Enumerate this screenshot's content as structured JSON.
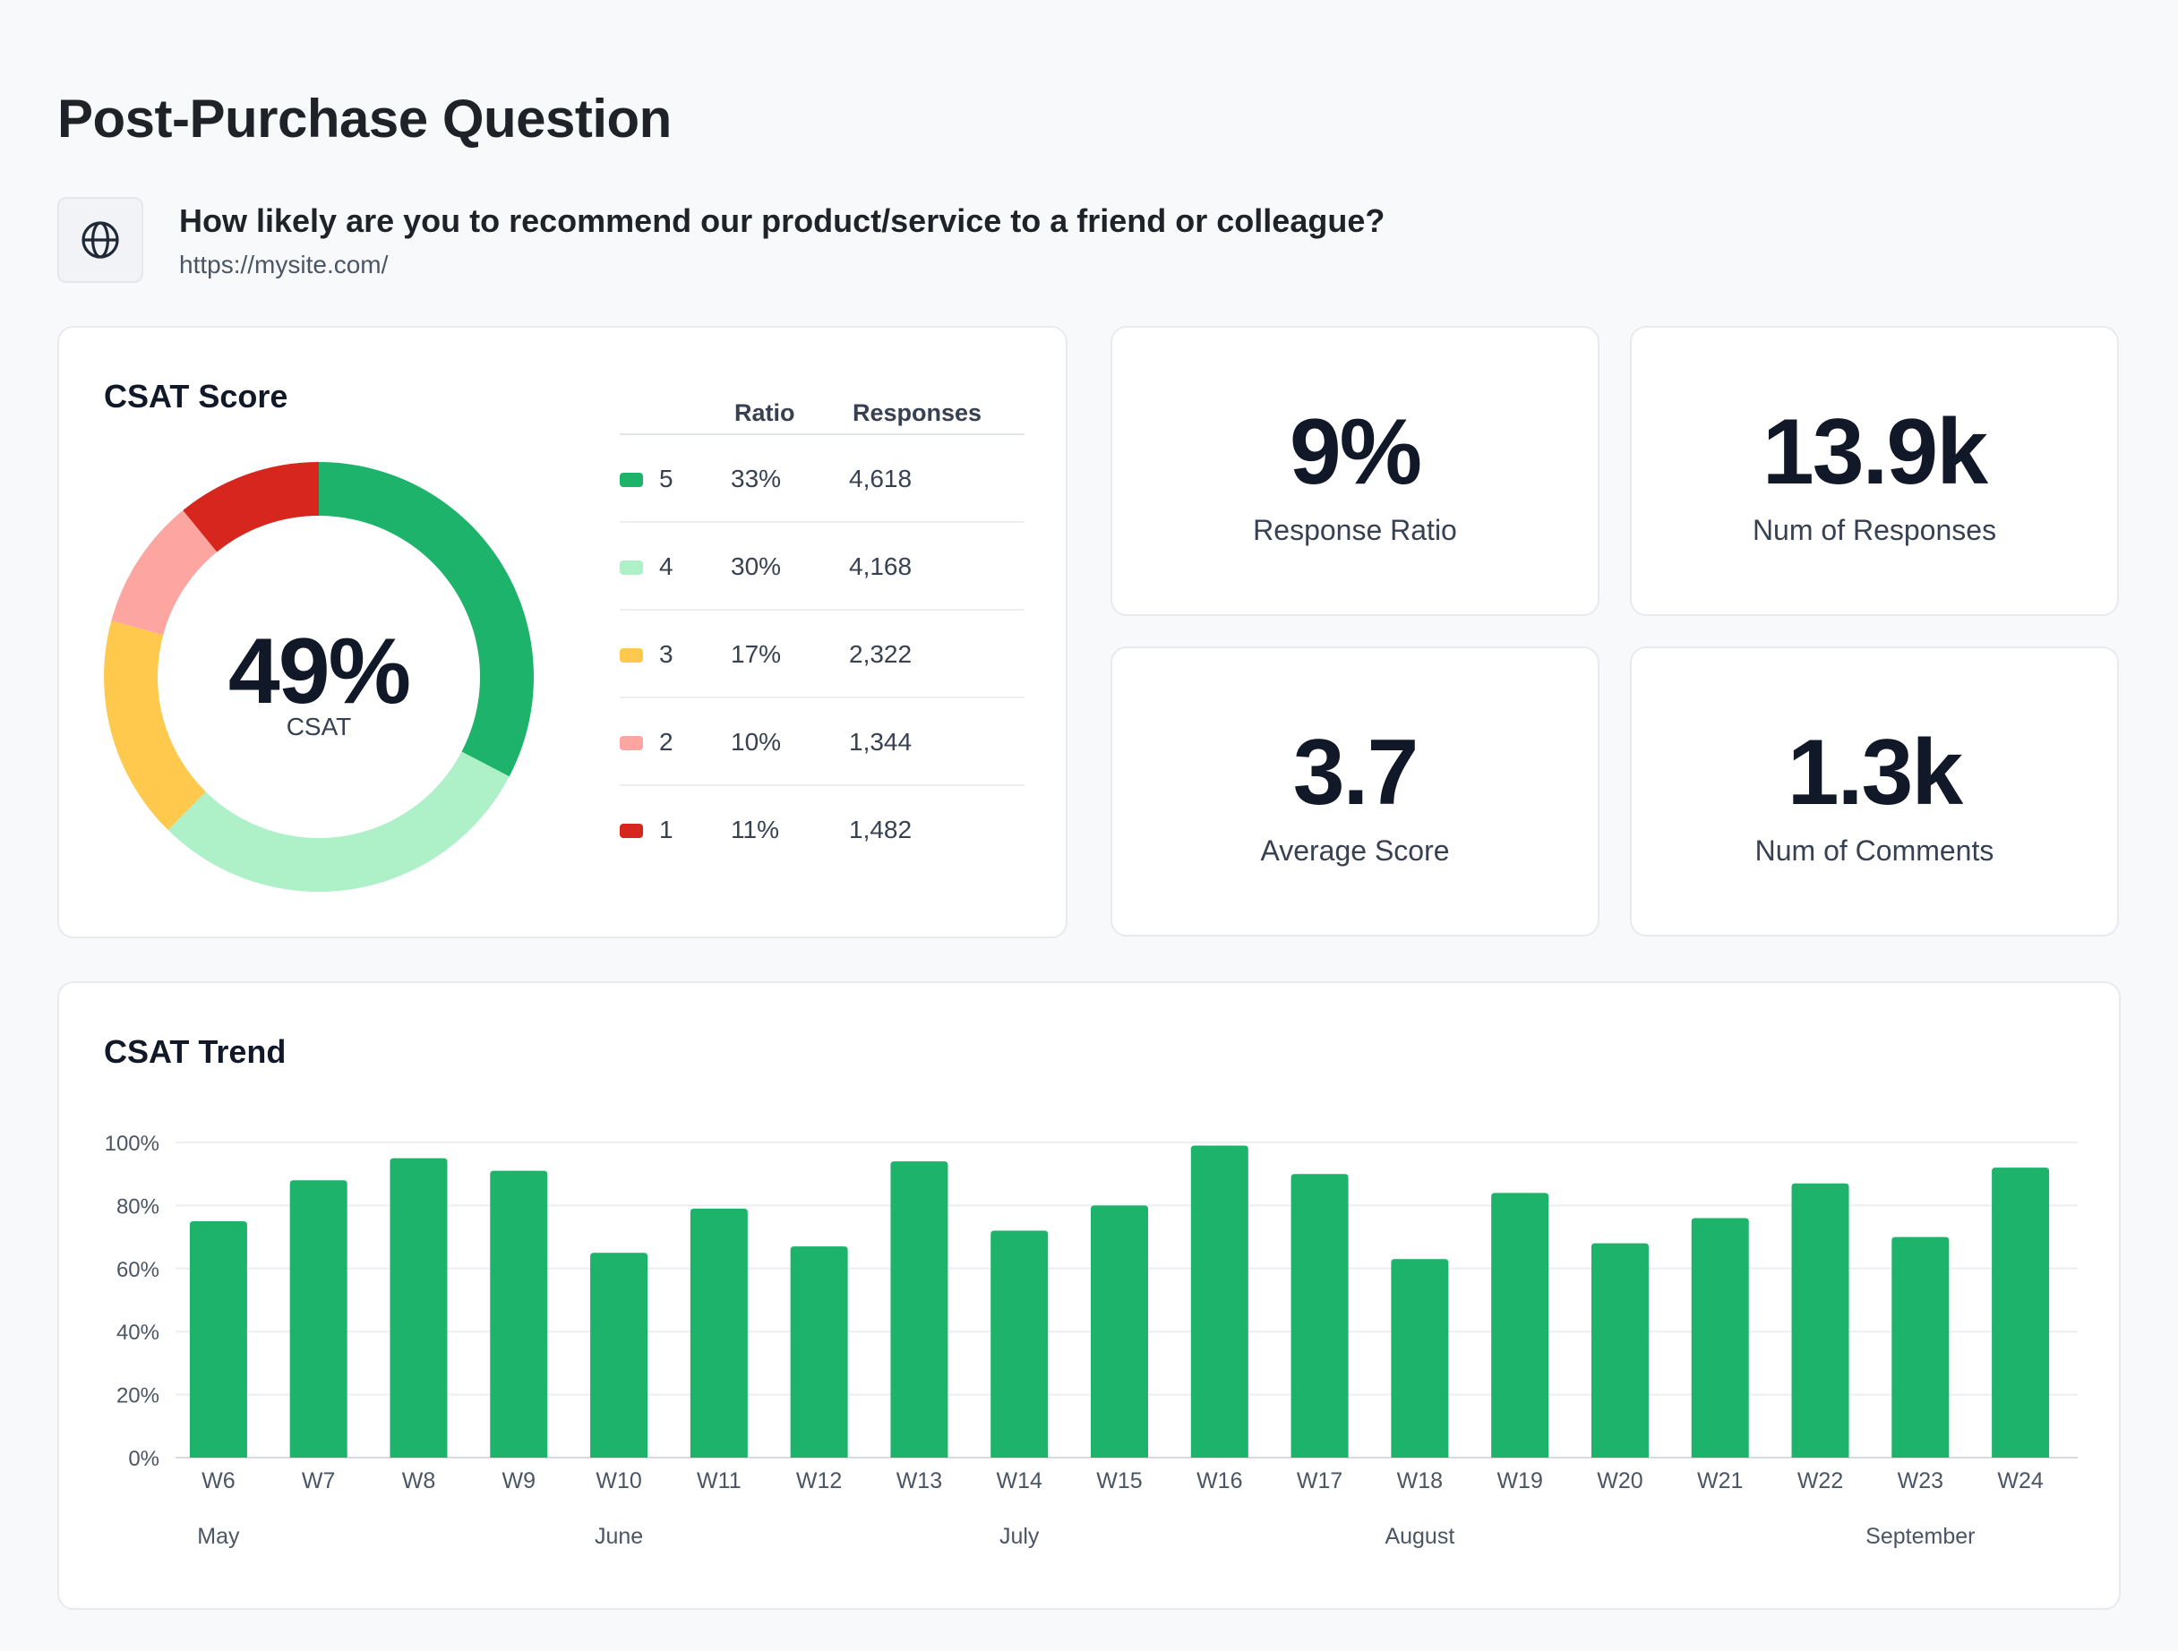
{
  "page": {
    "title": "Post-Purchase Question",
    "question": "How likely are you to recommend our product/service to a friend or colleague?",
    "url": "https://mysite.com/",
    "icon": "globe-icon"
  },
  "csat": {
    "title": "CSAT Score",
    "center_value": "49%",
    "center_label": "CSAT",
    "headers": {
      "ratio": "Ratio",
      "responses": "Responses"
    },
    "rows": [
      {
        "score": "5",
        "ratio": "33%",
        "responses": "4,618",
        "color": "#1db36b"
      },
      {
        "score": "4",
        "ratio": "30%",
        "responses": "4,168",
        "color": "#aef0c8"
      },
      {
        "score": "3",
        "ratio": "17%",
        "responses": "2,322",
        "color": "#ffc94d"
      },
      {
        "score": "2",
        "ratio": "10%",
        "responses": "1,344",
        "color": "#fca5a1"
      },
      {
        "score": "1",
        "ratio": "11%",
        "responses": "1,482",
        "color": "#d7261e"
      }
    ]
  },
  "stats": [
    {
      "value": "9%",
      "label": "Response Ratio"
    },
    {
      "value": "13.9k",
      "label": "Num of Responses"
    },
    {
      "value": "3.7",
      "label": "Average Score"
    },
    {
      "value": "1.3k",
      "label": "Num of Comments"
    }
  ],
  "chart_data": [
    {
      "type": "pie",
      "title": "CSAT Score",
      "categories": [
        "5",
        "4",
        "3",
        "2",
        "1"
      ],
      "values": [
        33,
        30,
        17,
        10,
        11
      ],
      "colors": [
        "#1db36b",
        "#aef0c8",
        "#ffc94d",
        "#fca5a1",
        "#d7261e"
      ]
    },
    {
      "type": "bar",
      "title": "CSAT Trend",
      "categories": [
        "W6",
        "W7",
        "W8",
        "W9",
        "W10",
        "W11",
        "W12",
        "W13",
        "W14",
        "W15",
        "W16",
        "W17",
        "W18",
        "W19",
        "W20",
        "W21",
        "W22",
        "W23",
        "W24"
      ],
      "values": [
        75,
        88,
        95,
        91,
        65,
        79,
        67,
        94,
        72,
        80,
        99,
        90,
        63,
        84,
        68,
        76,
        87,
        70,
        92
      ],
      "color": "#1db36b",
      "ylim": [
        0,
        100
      ],
      "yticks": [
        "0%",
        "20%",
        "40%",
        "60%",
        "80%",
        "100%"
      ],
      "months": [
        {
          "label": "May",
          "week": "W6"
        },
        {
          "label": "June",
          "week": "W10"
        },
        {
          "label": "July",
          "week": "W14"
        },
        {
          "label": "August",
          "week": "W18"
        },
        {
          "label": "September",
          "week": "W23"
        }
      ],
      "grid": true
    }
  ]
}
